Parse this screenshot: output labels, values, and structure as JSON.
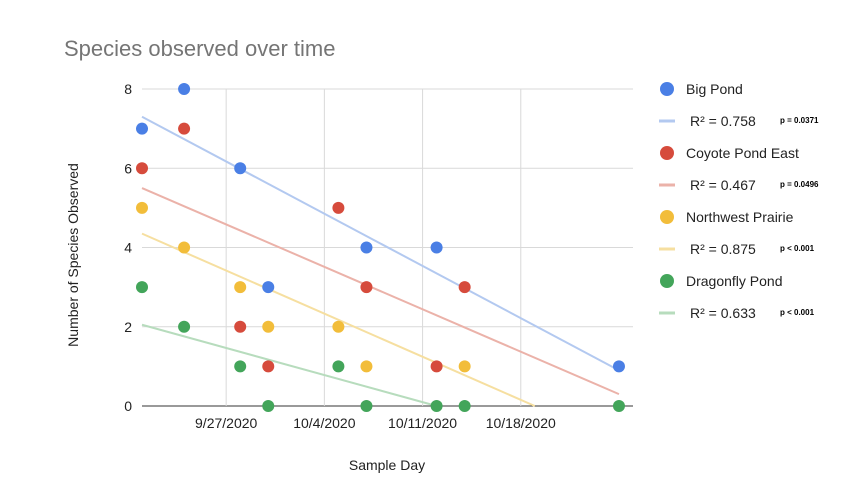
{
  "chart_data": {
    "type": "scatter",
    "title": "Species observed over time",
    "xlabel": "Sample Day",
    "ylabel": "Number of Species Observed",
    "x_ticks": [
      "9/27/2020",
      "10/4/2020",
      "10/11/2020",
      "10/18/2020"
    ],
    "xlim": [
      "9/21/2020",
      "10/26/2020"
    ],
    "y_ticks": [
      "0",
      "2",
      "4",
      "6",
      "8"
    ],
    "ylim": [
      0,
      8
    ],
    "grid": true,
    "legend_position": "right",
    "series": [
      {
        "name": "Big Pond",
        "color": "#4a7fe5",
        "trend_color": "#b3c9f0",
        "r2_label": "R² = 0.758",
        "p_label": "p = 0.0371",
        "points": [
          {
            "x": "9/21/2020",
            "y": 7
          },
          {
            "x": "9/24/2020",
            "y": 8
          },
          {
            "x": "9/28/2020",
            "y": 6
          },
          {
            "x": "9/30/2020",
            "y": 3
          },
          {
            "x": "10/7/2020",
            "y": 4
          },
          {
            "x": "10/12/2020",
            "y": 4
          },
          {
            "x": "10/25/2020",
            "y": 1
          }
        ],
        "trendline": [
          {
            "x": "9/21/2020",
            "y": 7.3
          },
          {
            "x": "10/25/2020",
            "y": 0.9
          }
        ]
      },
      {
        "name": "Coyote Pond East",
        "color": "#d64b3c",
        "trend_color": "#ebb2a9",
        "r2_label": "R² = 0.467",
        "p_label": "p = 0.0496",
        "points": [
          {
            "x": "9/21/2020",
            "y": 6
          },
          {
            "x": "9/24/2020",
            "y": 7
          },
          {
            "x": "9/28/2020",
            "y": 2
          },
          {
            "x": "9/30/2020",
            "y": 1
          },
          {
            "x": "10/5/2020",
            "y": 5
          },
          {
            "x": "10/7/2020",
            "y": 3
          },
          {
            "x": "10/12/2020",
            "y": 1
          },
          {
            "x": "10/14/2020",
            "y": 3
          }
        ],
        "trendline": [
          {
            "x": "9/21/2020",
            "y": 5.5
          },
          {
            "x": "10/25/2020",
            "y": 0.3
          }
        ]
      },
      {
        "name": "Northwest Prairie",
        "color": "#f2bd3a",
        "trend_color": "#f6dfa0",
        "r2_label": "R² = 0.875",
        "p_label": "p < 0.001",
        "points": [
          {
            "x": "9/21/2020",
            "y": 5
          },
          {
            "x": "9/24/2020",
            "y": 4
          },
          {
            "x": "9/28/2020",
            "y": 3
          },
          {
            "x": "9/30/2020",
            "y": 2
          },
          {
            "x": "10/5/2020",
            "y": 2
          },
          {
            "x": "10/7/2020",
            "y": 1
          },
          {
            "x": "10/14/2020",
            "y": 1
          }
        ],
        "trendline": [
          {
            "x": "9/21/2020",
            "y": 4.35
          },
          {
            "x": "10/19/2020",
            "y": 0
          }
        ]
      },
      {
        "name": "Dragonfly Pond",
        "color": "#43a55a",
        "trend_color": "#b7dcbd",
        "r2_label": "R² = 0.633",
        "p_label": "p < 0.001",
        "points": [
          {
            "x": "9/21/2020",
            "y": 3
          },
          {
            "x": "9/24/2020",
            "y": 2
          },
          {
            "x": "9/28/2020",
            "y": 1
          },
          {
            "x": "9/30/2020",
            "y": 0
          },
          {
            "x": "10/5/2020",
            "y": 1
          },
          {
            "x": "10/7/2020",
            "y": 0
          },
          {
            "x": "10/12/2020",
            "y": 0
          },
          {
            "x": "10/14/2020",
            "y": 0
          },
          {
            "x": "10/25/2020",
            "y": 0
          }
        ],
        "trendline": [
          {
            "x": "9/21/2020",
            "y": 2.05
          },
          {
            "x": "10/12/2020",
            "y": 0
          }
        ]
      }
    ]
  }
}
